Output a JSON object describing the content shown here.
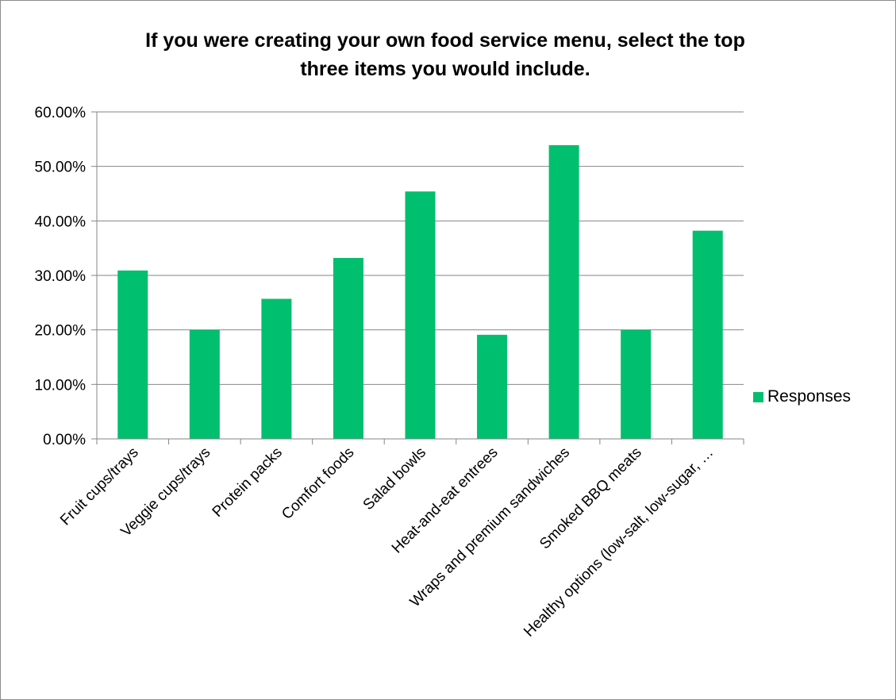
{
  "chart_data": {
    "type": "bar",
    "title_lines": [
      "If you were creating your own food service menu, select the top",
      "three items you would include."
    ],
    "categories": [
      "Fruit cups/trays",
      "Veggie cups/trays",
      "Protein packs",
      "Comfort foods",
      "Salad bowls",
      "Heat-and-eat entrees",
      "Wraps and premium sandwiches",
      "Smoked BBQ meats",
      "Healthy options (low-salt, low-sugar, …"
    ],
    "series": [
      {
        "name": "Responses",
        "values": [
          30.9,
          20.0,
          25.7,
          33.2,
          45.4,
          19.1,
          53.9,
          20.0,
          38.2
        ]
      }
    ],
    "ylim": [
      0,
      60
    ],
    "yticks": [
      "0.00%",
      "10.00%",
      "20.00%",
      "30.00%",
      "40.00%",
      "50.00%",
      "60.00%"
    ],
    "grid": true,
    "legend_position": "right",
    "bar_color": "#00BF6F",
    "gridline_color": "#868686"
  }
}
